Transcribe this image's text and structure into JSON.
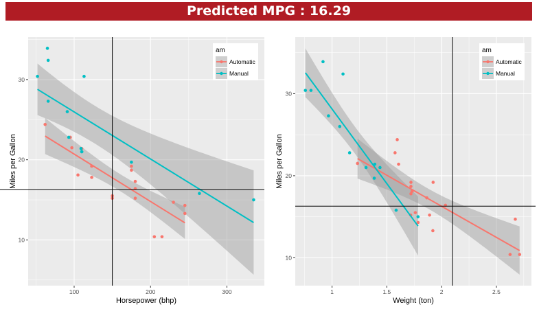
{
  "header": {
    "title": "Predicted MPG : 16.29"
  },
  "colors": {
    "title_bar": "#B01C24",
    "automatic": "#F8766D",
    "manual": "#00BFC4",
    "panel": "#EBEBEB",
    "band": "#999999"
  },
  "chart_data": [
    {
      "type": "scatter",
      "xlabel": "Horsepower (bhp)",
      "ylabel": "Miles per Gallon",
      "xlim": [
        39.8,
        349
      ],
      "ylim": [
        4.3,
        35.3
      ],
      "xticks": [
        100,
        200,
        300
      ],
      "yticks": [
        10,
        20,
        30
      ],
      "grid": true,
      "smooth": "lm with 95% confidence band",
      "reference_lines": {
        "x": 150,
        "y": 16.29
      },
      "legend": {
        "title": "am",
        "position": "top-right",
        "entries": [
          "Automatic",
          "Manual"
        ]
      },
      "series": [
        {
          "name": "Automatic",
          "x": [
            110,
            175,
            105,
            245,
            62,
            95,
            123,
            123,
            180,
            180,
            180,
            205,
            215,
            230,
            97,
            150,
            150,
            245,
            175
          ],
          "y": [
            21.4,
            18.7,
            18.1,
            14.3,
            24.4,
            22.8,
            19.2,
            17.8,
            16.4,
            17.3,
            15.2,
            10.4,
            10.4,
            14.7,
            21.5,
            15.5,
            15.2,
            13.3,
            19.2
          ]
        },
        {
          "name": "Manual",
          "x": [
            110,
            110,
            93,
            66,
            52,
            65,
            66,
            91,
            113,
            264,
            175,
            335,
            109
          ],
          "y": [
            21.0,
            21.0,
            22.8,
            32.4,
            30.4,
            33.9,
            27.3,
            26.0,
            30.4,
            15.8,
            19.7,
            15.0,
            21.4
          ]
        }
      ]
    },
    {
      "type": "scatter",
      "xlabel": "Weight (ton)",
      "ylabel": "Miles per Gallon",
      "xlim": [
        0.664,
        2.82
      ],
      "ylim": [
        6.6,
        36.9
      ],
      "xticks": [
        1.0,
        1.5,
        2.0,
        2.5
      ],
      "yticks": [
        10,
        20,
        30
      ],
      "grid": true,
      "smooth": "lm with 95% confidence band",
      "reference_lines": {
        "x": 2.1,
        "y": 16.29
      },
      "legend": {
        "title": "am",
        "position": "top-right",
        "entries": [
          "Automatic",
          "Manual"
        ]
      },
      "series": [
        {
          "name": "Automatic",
          "x": [
            1.6075,
            1.72,
            1.73,
            1.785,
            1.595,
            1.575,
            1.72,
            1.72,
            2.035,
            1.865,
            1.89,
            2.625,
            2.712,
            2.6725,
            1.2325,
            1.76,
            1.7175,
            1.92,
            1.9225
          ],
          "y": [
            21.4,
            18.7,
            18.1,
            14.3,
            24.4,
            22.8,
            19.2,
            17.8,
            16.4,
            17.3,
            15.2,
            10.4,
            10.4,
            14.7,
            21.5,
            15.5,
            15.2,
            13.3,
            19.2
          ]
        },
        {
          "name": "Manual",
          "x": [
            1.31,
            1.4375,
            1.16,
            1.1,
            0.8075,
            0.9175,
            0.9675,
            1.07,
            0.7565,
            1.585,
            1.385,
            1.785,
            1.39
          ],
          "y": [
            21.0,
            21.0,
            22.8,
            32.4,
            30.4,
            33.9,
            27.3,
            26.0,
            30.4,
            15.8,
            19.7,
            15.0,
            21.4
          ]
        }
      ]
    }
  ]
}
